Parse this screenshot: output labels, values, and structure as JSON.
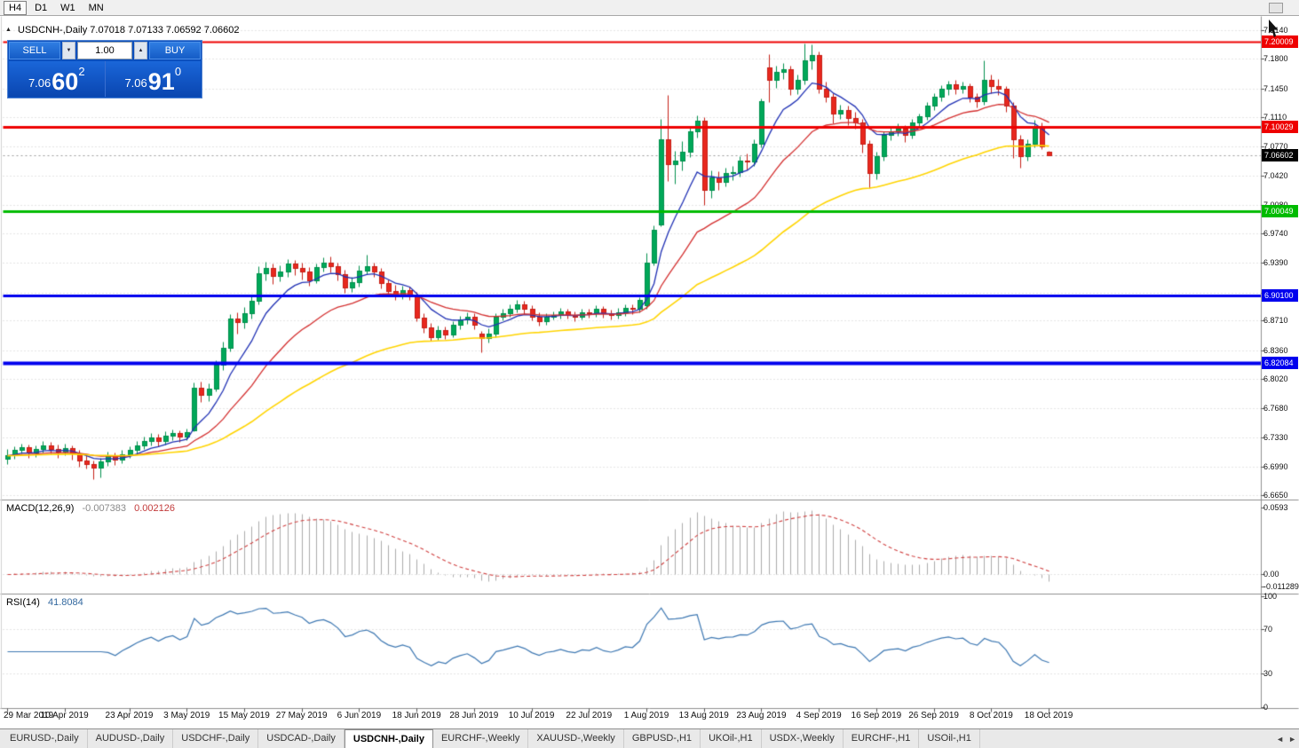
{
  "toolbar": {
    "timeframes": [
      "H4",
      "D1",
      "W1",
      "MN"
    ],
    "active": "H4"
  },
  "window": {
    "title": "USDCNH-,Daily 7.07018 7.07133 7.06592 7.06602",
    "collapse_arrow": "▲"
  },
  "trade_panel": {
    "sell_label": "SELL",
    "buy_label": "BUY",
    "volume": "1.00",
    "spin_down_icon": "▼",
    "spin_up_icon": "▲",
    "sell_price": {
      "prefix": "7.06",
      "big": "60",
      "sup": "2"
    },
    "buy_price": {
      "prefix": "7.06",
      "big": "91",
      "sup": "0"
    }
  },
  "chart_data": {
    "type": "candlestick",
    "symbol": "USDCNH-",
    "timeframe": "Daily",
    "ohlc_display": {
      "open": "7.07018",
      "high": "7.07133",
      "low": "7.06592",
      "close": "7.06602"
    },
    "y_axis": {
      "min": 6.665,
      "max": 7.214,
      "labels": [
        "7.2140",
        "7.1800",
        "7.1450",
        "7.1110",
        "7.0770",
        "7.0420",
        "7.0080",
        "6.9740",
        "6.9390",
        "6.9040",
        "6.8710",
        "6.8360",
        "6.8020",
        "6.7680",
        "6.7330",
        "6.6990",
        "6.6650"
      ]
    },
    "x_labels": [
      {
        "text": "29 Mar 2019",
        "index": 0
      },
      {
        "text": "10 Apr 2019",
        "index": 8
      },
      {
        "text": "23 Apr 2019",
        "index": 17
      },
      {
        "text": "3 May 2019",
        "index": 25
      },
      {
        "text": "15 May 2019",
        "index": 33
      },
      {
        "text": "27 May 2019",
        "index": 41
      },
      {
        "text": "6 Jun 2019",
        "index": 49
      },
      {
        "text": "18 Jun 2019",
        "index": 57
      },
      {
        "text": "28 Jun 2019",
        "index": 65
      },
      {
        "text": "10 Jul 2019",
        "index": 73
      },
      {
        "text": "22 Jul 2019",
        "index": 81
      },
      {
        "text": "1 Aug 2019",
        "index": 89
      },
      {
        "text": "13 Aug 2019",
        "index": 97
      },
      {
        "text": "23 Aug 2019",
        "index": 105
      },
      {
        "text": "4 Sep 2019",
        "index": 113
      },
      {
        "text": "16 Sep 2019",
        "index": 121
      },
      {
        "text": "26 Sep 2019",
        "index": 129
      },
      {
        "text": "8 Oct 2019",
        "index": 137
      },
      {
        "text": "18 Oct 2019",
        "index": 145
      }
    ],
    "candles": [
      [
        6.708,
        6.719,
        6.702,
        6.712
      ],
      [
        6.712,
        6.723,
        6.708,
        6.718
      ],
      [
        6.718,
        6.726,
        6.714,
        6.7215
      ],
      [
        6.7215,
        6.725,
        6.709,
        6.715
      ],
      [
        6.715,
        6.724,
        6.71,
        6.719
      ],
      [
        6.719,
        6.729,
        6.715,
        6.724
      ],
      [
        6.724,
        6.728,
        6.714,
        6.72
      ],
      [
        6.72,
        6.725,
        6.709,
        6.716
      ],
      [
        6.716,
        6.726,
        6.712,
        6.721
      ],
      [
        6.721,
        6.724,
        6.707,
        6.714
      ],
      [
        6.714,
        6.718,
        6.699,
        6.706
      ],
      [
        6.706,
        6.712,
        6.696,
        6.702
      ],
      [
        6.702,
        6.706,
        6.684,
        6.698
      ],
      [
        6.698,
        6.709,
        6.686,
        6.705
      ],
      [
        6.705,
        6.716,
        6.7,
        6.711
      ],
      [
        6.711,
        6.715,
        6.701,
        6.707
      ],
      [
        6.707,
        6.718,
        6.703,
        6.713
      ],
      [
        6.713,
        6.723,
        6.709,
        6.718
      ],
      [
        6.718,
        6.729,
        6.714,
        6.724
      ],
      [
        6.724,
        6.734,
        6.72,
        6.729
      ],
      [
        6.729,
        6.738,
        6.724,
        6.733
      ],
      [
        6.733,
        6.737,
        6.723,
        6.729
      ],
      [
        6.729,
        6.74,
        6.725,
        6.735
      ],
      [
        6.735,
        6.743,
        6.73,
        6.738
      ],
      [
        6.738,
        6.742,
        6.728,
        6.734
      ],
      [
        6.734,
        6.744,
        6.73,
        6.739
      ],
      [
        6.742,
        6.798,
        6.74,
        6.792
      ],
      [
        6.792,
        6.799,
        6.775,
        6.783
      ],
      [
        6.783,
        6.797,
        6.776,
        6.791
      ],
      [
        6.791,
        6.824,
        6.788,
        6.819
      ],
      [
        6.819,
        6.846,
        6.813,
        6.839
      ],
      [
        6.839,
        6.879,
        6.835,
        6.874
      ],
      [
        6.874,
        6.881,
        6.856,
        6.869
      ],
      [
        6.869,
        6.887,
        6.862,
        6.88
      ],
      [
        6.88,
        6.901,
        6.874,
        6.894
      ],
      [
        6.894,
        6.935,
        6.89,
        6.927
      ],
      [
        6.927,
        6.941,
        6.919,
        6.933
      ],
      [
        6.933,
        6.938,
        6.914,
        6.924
      ],
      [
        6.924,
        6.936,
        6.917,
        6.929
      ],
      [
        6.929,
        6.944,
        6.923,
        6.938
      ],
      [
        6.938,
        6.943,
        6.925,
        6.933
      ],
      [
        6.933,
        6.939,
        6.92,
        6.929
      ],
      [
        6.929,
        6.934,
        6.912,
        6.919
      ],
      [
        6.919,
        6.938,
        6.915,
        6.934
      ],
      [
        6.934,
        6.946,
        6.929,
        6.94
      ],
      [
        6.94,
        6.947,
        6.928,
        6.935
      ],
      [
        6.935,
        6.94,
        6.919,
        6.926
      ],
      [
        6.926,
        6.931,
        6.904,
        6.91
      ],
      [
        6.91,
        6.923,
        6.905,
        6.916
      ],
      [
        6.916,
        6.936,
        6.911,
        6.93
      ],
      [
        6.93,
        6.949,
        6.926,
        6.935
      ],
      [
        6.935,
        6.94,
        6.923,
        6.929
      ],
      [
        6.929,
        6.933,
        6.909,
        6.915
      ],
      [
        6.915,
        6.92,
        6.9,
        6.906
      ],
      [
        6.906,
        6.913,
        6.895,
        6.901
      ],
      [
        6.901,
        6.912,
        6.897,
        6.907
      ],
      [
        6.907,
        6.911,
        6.896,
        6.902
      ],
      [
        6.902,
        6.905,
        6.87,
        6.875
      ],
      [
        6.875,
        6.88,
        6.857,
        6.863
      ],
      [
        6.863,
        6.868,
        6.847,
        6.852
      ],
      [
        6.852,
        6.865,
        6.848,
        6.86
      ],
      [
        6.86,
        6.864,
        6.849,
        6.855
      ],
      [
        6.855,
        6.87,
        6.851,
        6.866
      ],
      [
        6.866,
        6.877,
        6.861,
        6.872
      ],
      [
        6.872,
        6.881,
        6.867,
        6.876
      ],
      [
        6.876,
        6.88,
        6.861,
        6.866
      ],
      [
        6.856,
        6.859,
        6.834,
        6.85
      ],
      [
        6.85,
        6.862,
        6.845,
        6.856
      ],
      [
        6.856,
        6.88,
        6.852,
        6.876
      ],
      [
        6.876,
        6.885,
        6.871,
        6.88
      ],
      [
        6.88,
        6.89,
        6.876,
        6.885
      ],
      [
        6.885,
        6.895,
        6.881,
        6.89
      ],
      [
        6.89,
        6.894,
        6.879,
        6.885
      ],
      [
        6.885,
        6.889,
        6.871,
        6.876
      ],
      [
        6.876,
        6.881,
        6.865,
        6.87
      ],
      [
        6.87,
        6.88,
        6.866,
        6.876
      ],
      [
        6.876,
        6.882,
        6.872,
        6.878
      ],
      [
        6.878,
        6.886,
        6.874,
        6.882
      ],
      [
        6.882,
        6.885,
        6.873,
        6.878
      ],
      [
        6.878,
        6.882,
        6.87,
        6.876
      ],
      [
        6.876,
        6.885,
        6.872,
        6.881
      ],
      [
        6.881,
        6.885,
        6.875,
        6.88
      ],
      [
        6.88,
        6.889,
        6.876,
        6.885
      ],
      [
        6.885,
        6.888,
        6.875,
        6.88
      ],
      [
        6.88,
        6.884,
        6.872,
        6.878
      ],
      [
        6.878,
        6.886,
        6.874,
        6.881
      ],
      [
        6.881,
        6.89,
        6.877,
        6.886
      ],
      [
        6.886,
        6.89,
        6.879,
        6.885
      ],
      [
        6.885,
        6.899,
        6.881,
        6.895
      ],
      [
        6.889,
        6.951,
        6.885,
        6.94
      ],
      [
        6.94,
        6.983,
        6.936,
        6.978
      ],
      [
        6.985,
        7.109,
        6.982,
        7.085
      ],
      [
        7.085,
        7.138,
        7.036,
        7.056
      ],
      [
        7.056,
        7.072,
        7.033,
        7.06
      ],
      [
        7.06,
        7.083,
        7.048,
        7.07
      ],
      [
        7.07,
        7.101,
        7.064,
        7.095
      ],
      [
        7.095,
        7.113,
        7.087,
        7.107
      ],
      [
        7.107,
        7.111,
        7.008,
        7.025
      ],
      [
        7.025,
        7.048,
        7.016,
        7.04
      ],
      [
        7.04,
        7.047,
        7.025,
        7.035
      ],
      [
        7.035,
        7.052,
        7.03,
        7.045
      ],
      [
        7.045,
        7.054,
        7.037,
        7.046
      ],
      [
        7.046,
        7.065,
        7.041,
        7.06
      ],
      [
        7.06,
        7.068,
        7.049,
        7.059
      ],
      [
        7.059,
        7.085,
        7.054,
        7.08
      ],
      [
        7.08,
        7.133,
        7.076,
        7.13
      ],
      [
        7.17,
        7.186,
        7.129,
        7.155
      ],
      [
        7.155,
        7.172,
        7.146,
        7.165
      ],
      [
        7.165,
        7.175,
        7.156,
        7.168
      ],
      [
        7.168,
        7.172,
        7.138,
        7.145
      ],
      [
        7.145,
        7.162,
        7.139,
        7.155
      ],
      [
        7.155,
        7.1985,
        7.15,
        7.178
      ],
      [
        7.178,
        7.197,
        7.168,
        7.185
      ],
      [
        7.185,
        7.189,
        7.14,
        7.145
      ],
      [
        7.145,
        7.153,
        7.129,
        7.135
      ],
      [
        7.135,
        7.14,
        7.104,
        7.115
      ],
      [
        7.115,
        7.126,
        7.109,
        7.12
      ],
      [
        7.12,
        7.125,
        7.102,
        7.11
      ],
      [
        7.11,
        7.118,
        7.098,
        7.105
      ],
      [
        7.105,
        7.109,
        7.069,
        7.08
      ],
      [
        7.08,
        7.084,
        7.027,
        7.045
      ],
      [
        7.045,
        7.07,
        7.038,
        7.065
      ],
      [
        7.065,
        7.095,
        7.06,
        7.09
      ],
      [
        7.09,
        7.101,
        7.084,
        7.095
      ],
      [
        7.095,
        7.104,
        7.089,
        7.098
      ],
      [
        7.098,
        7.102,
        7.082,
        7.09
      ],
      [
        7.09,
        7.109,
        7.086,
        7.105
      ],
      [
        7.105,
        7.116,
        7.099,
        7.112
      ],
      [
        7.112,
        7.129,
        7.108,
        7.125
      ],
      [
        7.125,
        7.14,
        7.12,
        7.135
      ],
      [
        7.135,
        7.149,
        7.13,
        7.145
      ],
      [
        7.145,
        7.154,
        7.138,
        7.15
      ],
      [
        7.15,
        7.155,
        7.139,
        7.145
      ],
      [
        7.145,
        7.153,
        7.14,
        7.148
      ],
      [
        7.148,
        7.151,
        7.129,
        7.135
      ],
      [
        7.135,
        7.14,
        7.123,
        7.13
      ],
      [
        7.13,
        7.178,
        7.126,
        7.155
      ],
      [
        7.155,
        7.162,
        7.14,
        7.148
      ],
      [
        7.148,
        7.156,
        7.138,
        7.145
      ],
      [
        7.145,
        7.148,
        7.118,
        7.125
      ],
      [
        7.125,
        7.129,
        7.063,
        7.085
      ],
      [
        7.085,
        7.09,
        7.052,
        7.065
      ],
      [
        7.065,
        7.085,
        7.06,
        7.08
      ],
      [
        7.08,
        7.108,
        7.076,
        7.1
      ],
      [
        7.1,
        7.105,
        7.074,
        7.077
      ],
      [
        7.0702,
        7.0713,
        7.0659,
        7.066
      ]
    ],
    "hlines": [
      {
        "price": 7.20009,
        "color": "#ee0000",
        "label": "7.20009",
        "width": 2
      },
      {
        "price": 7.10029,
        "color": "#ee0000",
        "label": "7.10029",
        "width": 3
      },
      {
        "price": 7.00049,
        "color": "#00bb00",
        "label": "7.00049",
        "width": 3
      },
      {
        "price": 6.901,
        "color": "#0000ee",
        "label": "6.90100",
        "width": 3
      },
      {
        "price": 6.82084,
        "color": "#0000ee",
        "label": "6.82084",
        "width": 4
      }
    ],
    "current_price": {
      "value": 7.06602,
      "label": "7.06602"
    },
    "moving_averages": [
      {
        "period": 8,
        "color": "#2031b4"
      },
      {
        "period": 21,
        "color": "#d32f2f"
      },
      {
        "period": 55,
        "color": "#ffd400"
      }
    ],
    "colors": {
      "up": "#00a859",
      "up_border": "#008f4c",
      "down": "#e8281e",
      "down_border": "#c51f16",
      "grid": "#c9c9c9",
      "hist": "#ababab",
      "signal": "#d04040",
      "rsi_line": "#3e78b2",
      "current_line": "#9a9a9a"
    },
    "macd": {
      "label": "MACD(12,26,9)",
      "value_text": "-0.007383",
      "signal_text": "0.002126",
      "fast": 12,
      "slow": 26,
      "signal_period": 9,
      "axis": [
        {
          "label": "0.0593",
          "value": 0.0593
        },
        {
          "label": "0.00",
          "value": 0.0
        },
        {
          "label": "-0.011289",
          "value": -0.011289
        }
      ]
    },
    "rsi": {
      "label": "RSI(14)",
      "value_text": "41.8084",
      "period": 14,
      "axis": [
        100,
        70,
        30,
        0
      ],
      "levels": [
        70,
        30
      ]
    }
  },
  "tabs": {
    "items": [
      "EURUSD-,Daily",
      "AUDUSD-,Daily",
      "USDCHF-,Daily",
      "USDCAD-,Daily",
      "USDCNH-,Daily",
      "EURCHF-,Weekly",
      "XAUUSD-,Weekly",
      "GBPUSD-,H1",
      "UKOil-,H1",
      "USDX-,Weekly",
      "EURCHF-,H1",
      "USOil-,H1"
    ],
    "active_index": 4,
    "scroll_left": "◄",
    "scroll_right": "►"
  }
}
